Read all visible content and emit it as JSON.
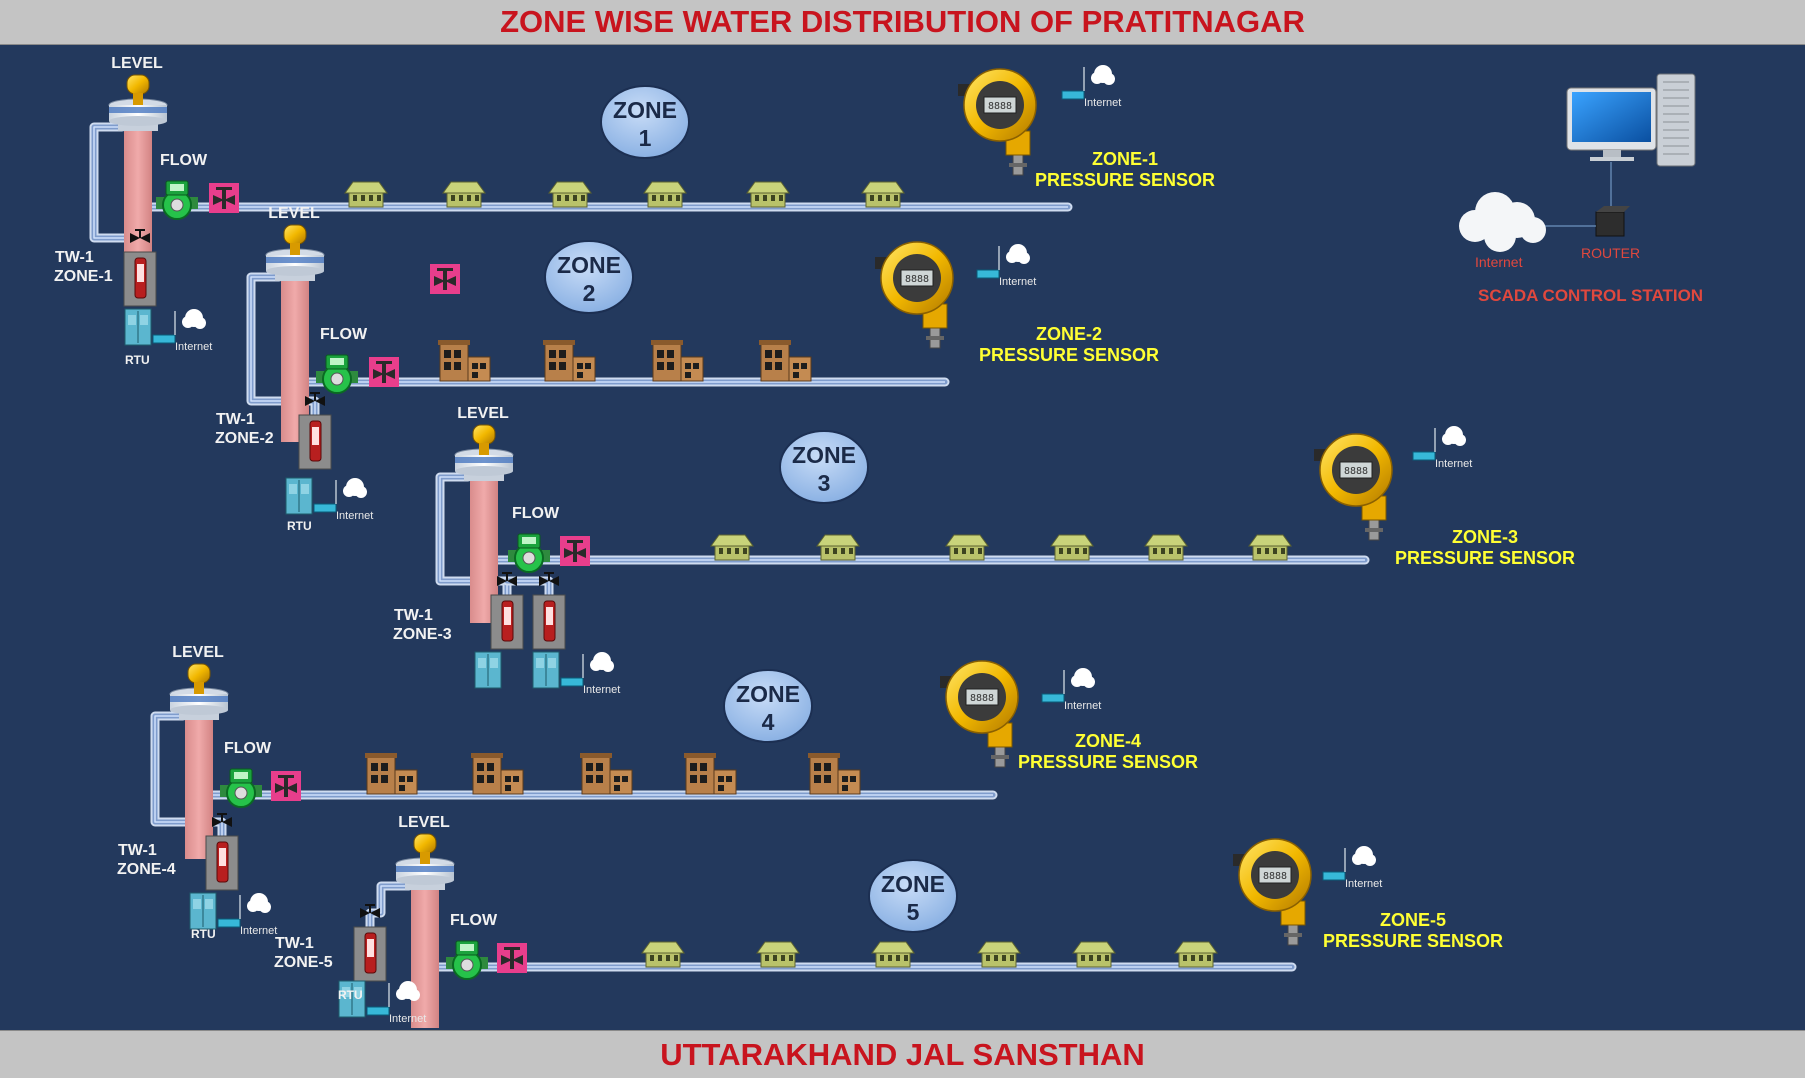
{
  "title": "ZONE WISE WATER DISTRIBUTION OF PRATITNAGAR",
  "footer": "UTTARAKHAND JAL SANSTHAN",
  "labels": {
    "level": "LEVEL",
    "flow": "FLOW",
    "rtu": "RTU",
    "internet": "Internet",
    "pressure_sensor": "PRESSURE SENSOR",
    "tubewell": "TW-1"
  },
  "zones": [
    {
      "zone_word": "ZONE",
      "zone_num": "1",
      "tw_zone": "ZONE-1",
      "sensor_zone": "ZONE-1",
      "building_type": "hut",
      "building_count": 6
    },
    {
      "zone_word": "ZONE",
      "zone_num": "2",
      "tw_zone": "ZONE-2",
      "sensor_zone": "ZONE-2",
      "building_type": "house",
      "building_count": 4
    },
    {
      "zone_word": "ZONE",
      "zone_num": "3",
      "tw_zone": "ZONE-3",
      "sensor_zone": "ZONE-3",
      "building_type": "hut",
      "building_count": 6
    },
    {
      "zone_word": "ZONE",
      "zone_num": "4",
      "tw_zone": "ZONE-4",
      "sensor_zone": "ZONE-4",
      "building_type": "house",
      "building_count": 5
    },
    {
      "zone_word": "ZONE",
      "zone_num": "5",
      "tw_zone": "ZONE-5",
      "sensor_zone": "ZONE-5",
      "building_type": "hut",
      "building_count": 6
    }
  ],
  "scada": {
    "title": "SCADA CONTROL STATION",
    "router_label": "ROUTER",
    "internet_label": "Internet"
  },
  "colors": {
    "background": "#23395d",
    "banner": "#c4c4c4",
    "banner_text": "#c8141e",
    "sensor_text": "#ffff33",
    "pipe": "#9bb8e6",
    "zone_badge": "#9fc0ea",
    "scada_text": "#e0483e"
  }
}
